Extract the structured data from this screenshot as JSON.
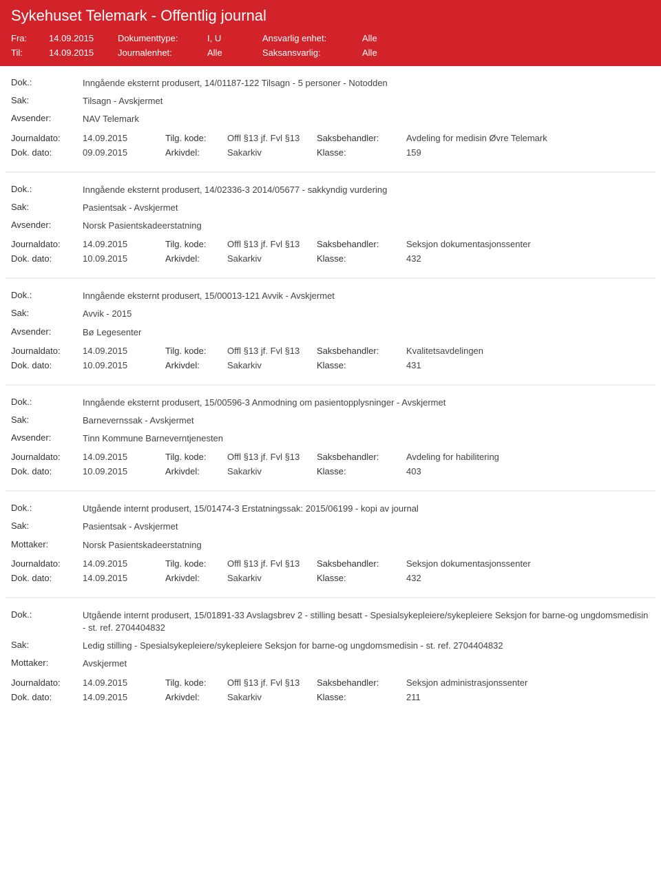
{
  "header": {
    "title": "Sykehuset Telemark - Offentlig journal",
    "fra_label": "Fra:",
    "fra_value": "14.09.2015",
    "til_label": "Til:",
    "til_value": "14.09.2015",
    "doktype_label": "Dokumenttype:",
    "doktype_value": "I, U",
    "journalenhet_label": "Journalenhet:",
    "journalenhet_value": "Alle",
    "ansvarlig_label": "Ansvarlig enhet:",
    "ansvarlig_value": "Alle",
    "saksansvarlig_label": "Saksansvarlig:",
    "saksansvarlig_value": "Alle"
  },
  "labels": {
    "dok": "Dok.:",
    "sak": "Sak:",
    "avsender": "Avsender:",
    "mottaker": "Mottaker:",
    "journaldato": "Journaldato:",
    "dokdato": "Dok. dato:",
    "tilgkode": "Tilg. kode:",
    "arkivdel": "Arkivdel:",
    "saksbehandler": "Saksbehandler:",
    "klasse": "Klasse:"
  },
  "entries": [
    {
      "dok": "Inngående eksternt produsert, 14/01187-122 Tilsagn - 5 personer - Notodden",
      "sak": "Tilsagn - Avskjermet",
      "party_label": "Avsender:",
      "party": "NAV Telemark",
      "journaldato": "14.09.2015",
      "tilgkode": "Offl §13 jf. Fvl §13",
      "saksbehandler": "Avdeling for medisin Øvre Telemark",
      "dokdato": "09.09.2015",
      "arkivdel": "Sakarkiv",
      "klasse": "159"
    },
    {
      "dok": "Inngående eksternt produsert, 14/02336-3 2014/05677 - sakkyndig vurdering",
      "sak": "Pasientsak - Avskjermet",
      "party_label": "Avsender:",
      "party": "Norsk Pasientskadeerstatning",
      "journaldato": "14.09.2015",
      "tilgkode": "Offl §13 jf. Fvl §13",
      "saksbehandler": "Seksjon dokumentasjonssenter",
      "dokdato": "10.09.2015",
      "arkivdel": "Sakarkiv",
      "klasse": "432"
    },
    {
      "dok": "Inngående eksternt produsert, 15/00013-121 Avvik - Avskjermet",
      "sak": "Avvik - 2015",
      "party_label": "Avsender:",
      "party": "Bø Legesenter",
      "journaldato": "14.09.2015",
      "tilgkode": "Offl §13 jf. Fvl §13",
      "saksbehandler": "Kvalitetsavdelingen",
      "dokdato": "10.09.2015",
      "arkivdel": "Sakarkiv",
      "klasse": "431"
    },
    {
      "dok": "Inngående eksternt produsert, 15/00596-3 Anmodning om pasientopplysninger - Avskjermet",
      "sak": "Barnevernssak - Avskjermet",
      "party_label": "Avsender:",
      "party": "Tinn Kommune Barneverntjenesten",
      "journaldato": "14.09.2015",
      "tilgkode": "Offl §13 jf. Fvl §13",
      "saksbehandler": "Avdeling for habilitering",
      "dokdato": "10.09.2015",
      "arkivdel": "Sakarkiv",
      "klasse": "403"
    },
    {
      "dok": "Utgående internt produsert, 15/01474-3 Erstatningssak: 2015/06199 - kopi av journal",
      "sak": "Pasientsak - Avskjermet",
      "party_label": "Mottaker:",
      "party": "Norsk Pasientskadeerstatning",
      "journaldato": "14.09.2015",
      "tilgkode": "Offl §13 jf. Fvl §13",
      "saksbehandler": "Seksjon dokumentasjonssenter",
      "dokdato": "14.09.2015",
      "arkivdel": "Sakarkiv",
      "klasse": "432"
    },
    {
      "dok": "Utgående internt produsert, 15/01891-33 Avslagsbrev 2 - stilling besatt - Spesialsykepleiere/sykepleiere Seksjon for barne-og ungdomsmedisin - st. ref. 2704404832",
      "sak": "Ledig stilling - Spesialsykepleiere/sykepleiere Seksjon for barne-og ungdomsmedisin - st. ref. 2704404832",
      "party_label": "Mottaker:",
      "party": "Avskjermet",
      "journaldato": "14.09.2015",
      "tilgkode": "Offl §13 jf. Fvl §13",
      "saksbehandler": "Seksjon administrasjonssenter",
      "dokdato": "14.09.2015",
      "arkivdel": "Sakarkiv",
      "klasse": "211"
    }
  ]
}
